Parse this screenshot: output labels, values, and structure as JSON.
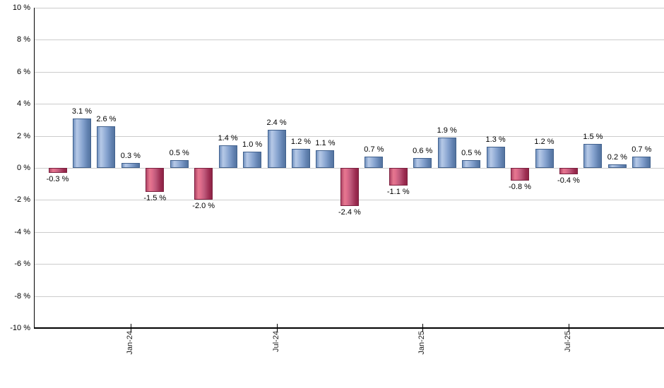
{
  "chart_data": {
    "type": "bar",
    "title": "",
    "xlabel": "",
    "ylabel": "",
    "ylim": [
      -10,
      10
    ],
    "y_step": 2,
    "grid": true,
    "legend": "none",
    "values": [
      -0.3,
      3.1,
      2.6,
      0.3,
      -1.5,
      0.5,
      -2.0,
      1.4,
      1.0,
      2.4,
      1.2,
      1.1,
      -2.4,
      0.7,
      -1.1,
      0.6,
      1.9,
      0.5,
      1.3,
      -0.8,
      1.2,
      -0.4,
      1.5,
      0.2,
      0.7
    ],
    "bar_labels": [
      "-0.3 %",
      "3.1 %",
      "2.6 %",
      "0.3 %",
      "-1.5 %",
      "0.5 %",
      "-2.0 %",
      "1.4 %",
      "1.0 %",
      "2.4 %",
      "1.2 %",
      "1.1 %",
      "-2.4 %",
      "0.7 %",
      "-1.1 %",
      "0.6 %",
      "1.9 %",
      "0.5 %",
      "1.3 %",
      "-0.8 %",
      "1.2 %",
      "-0.4 %",
      "1.5 %",
      "0.2 %",
      "0.7 %"
    ],
    "y_tick_labels": [
      "10 %",
      "8 %",
      "6 %",
      "4 %",
      "2 %",
      "0 %",
      "-2 %",
      "-4 %",
      "-6 %",
      "-8 %",
      "-10 %"
    ],
    "x_ticks": [
      {
        "label": "Jan-24",
        "index": 3
      },
      {
        "label": "Jul-24",
        "index": 9
      },
      {
        "label": "Jan-25",
        "index": 15
      },
      {
        "label": "Jul-25",
        "index": 21
      }
    ],
    "colors": {
      "positive_gradient": [
        "#7292c0",
        "#b6c9e7",
        "#a6bcdf",
        "#86a3cf",
        "#5f7fae",
        "#54759f"
      ],
      "positive_border": "#41618e",
      "negative_gradient": [
        "#b14668",
        "#e5778f",
        "#df6d8c",
        "#c05a7c",
        "#9b2c50",
        "#8f2447"
      ],
      "negative_border": "#7c1f3e",
      "gridline": "#cccccc",
      "axis": "#000000",
      "label_text": "#000000"
    }
  }
}
